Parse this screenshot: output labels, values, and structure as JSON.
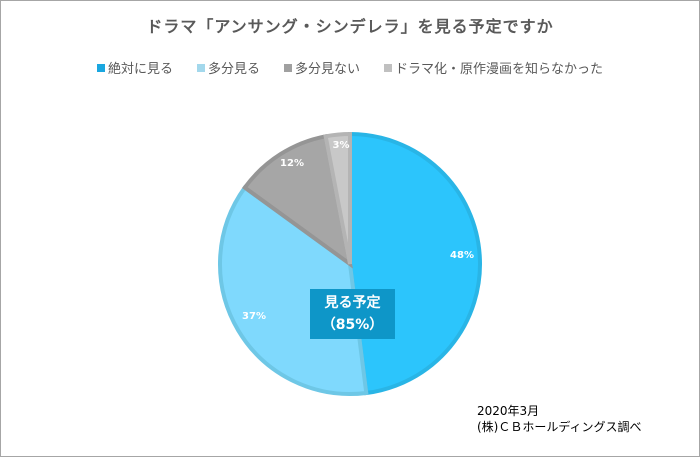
{
  "chart_data": {
    "type": "pie",
    "title": "ドラマ「アンサング・シンデレラ」を見る予定ですか",
    "legend_position": "top",
    "categories": [
      "絶対に見る",
      "多分見る",
      "多分見ない",
      "ドラマ化・原作漫画を知らなかった"
    ],
    "values": [
      48,
      37,
      12,
      3
    ],
    "labels": [
      "48%",
      "37%",
      "12%",
      "3%"
    ],
    "colors": [
      "#2cc5fc",
      "#7fd9fd",
      "#a6a6a6",
      "#c8c8c8"
    ],
    "border_colors": [
      "#29b5e6",
      "#6ec7e6",
      "#959595",
      "#b4b4b4"
    ],
    "legend_swatch_colors": [
      "#1aa7e0",
      "#a3d8ec",
      "#a0a0a0",
      "#c0c0c0"
    ],
    "annotation": {
      "line1": "見る予定",
      "line2": "（85%）",
      "color": "#0e96c8"
    },
    "start_angle_deg": 0,
    "direction": "clockwise"
  },
  "source": {
    "line1": "2020年3月",
    "line2": "(株)ＣＢホールディングス調べ"
  }
}
